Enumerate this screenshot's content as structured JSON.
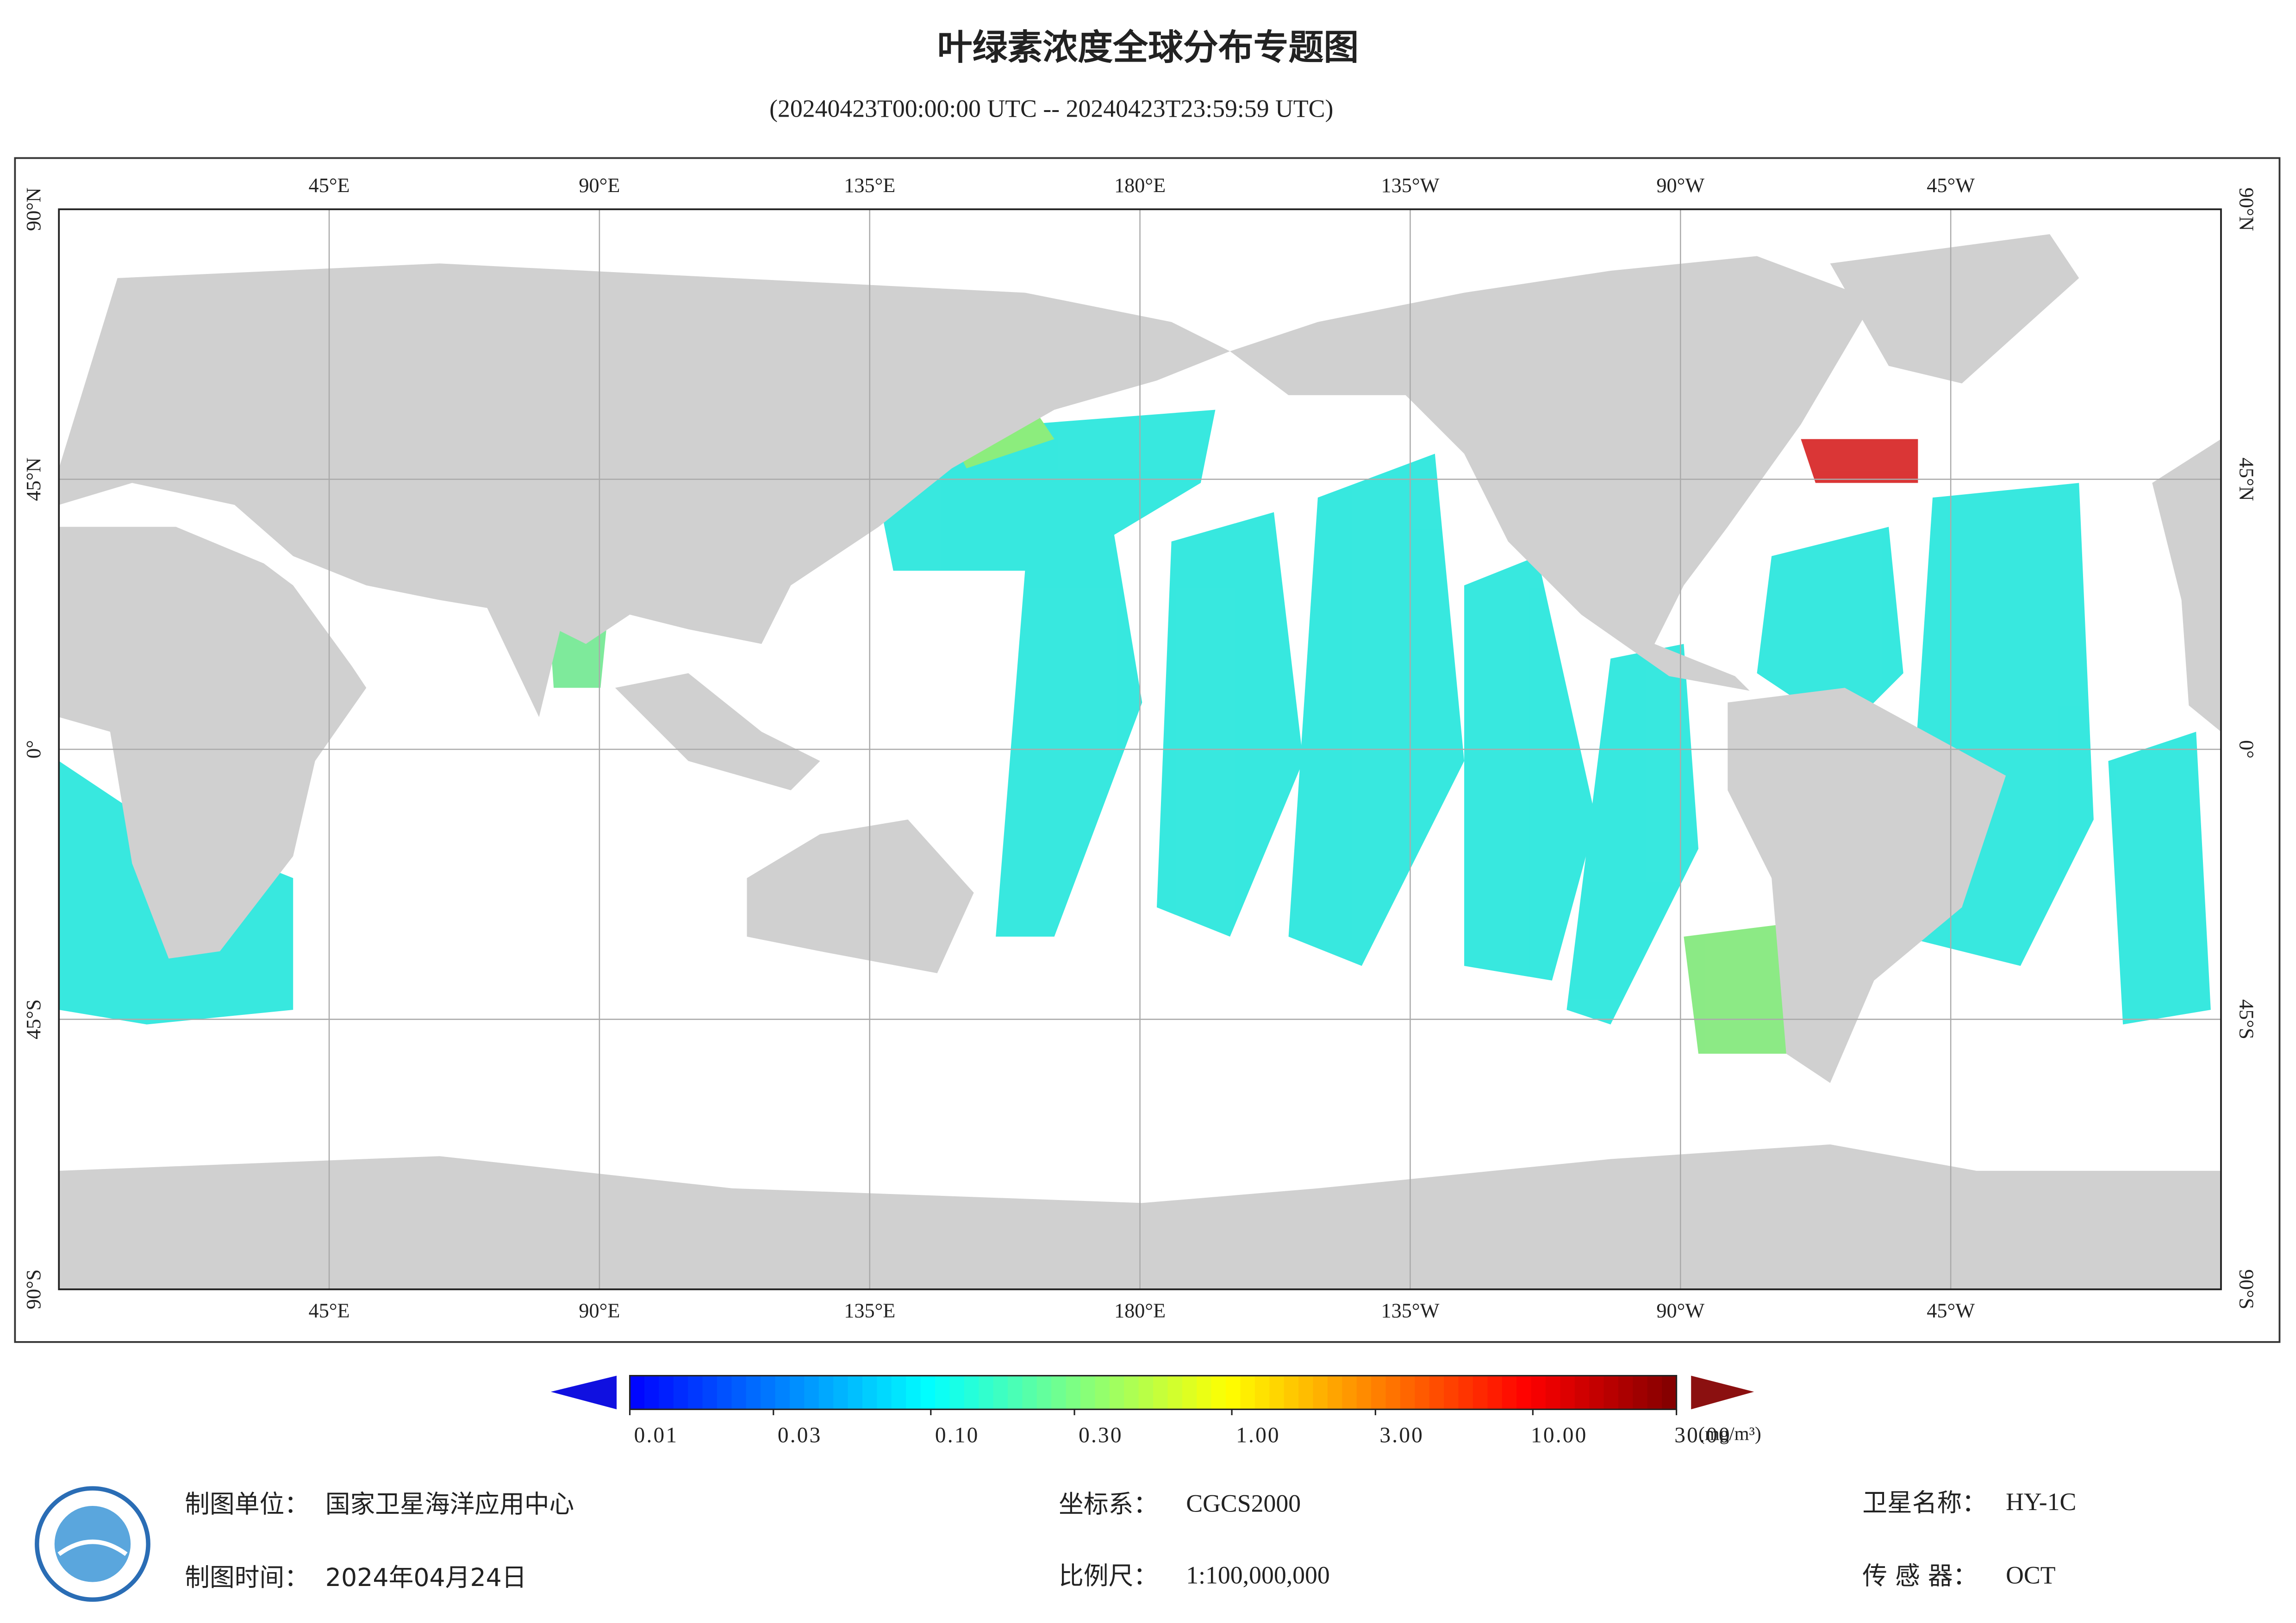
{
  "title": "叶绿素浓度全球分布专题图",
  "subtitle": "(20240423T00:00:00 UTC -- 20240423T23:59:59 UTC)",
  "map": {
    "xlim": [
      0,
      360
    ],
    "ylim": [
      -90,
      90
    ],
    "grid": true,
    "land_color": "#d0d0d0",
    "lon_ticks": [
      {
        "value": 45,
        "label": "45°E"
      },
      {
        "value": 90,
        "label": "90°E"
      },
      {
        "value": 135,
        "label": "135°E"
      },
      {
        "value": 180,
        "label": "180°E"
      },
      {
        "value": 225,
        "label": "135°W"
      },
      {
        "value": 270,
        "label": "90°W"
      },
      {
        "value": 315,
        "label": "45°W"
      }
    ],
    "lat_ticks": [
      {
        "value": 90,
        "label": "90°N"
      },
      {
        "value": 45,
        "label": "45°N"
      },
      {
        "value": 0,
        "label": "0°"
      },
      {
        "value": -45,
        "label": "45°S"
      },
      {
        "value": -90,
        "label": "90°S"
      }
    ]
  },
  "colorbar": {
    "scale": "log",
    "range": [
      0.01,
      30
    ],
    "unit": "(mg/m³)",
    "colors": [
      "#0000ff",
      "#0080ff",
      "#00ffff",
      "#80ff80",
      "#ffff00",
      "#ff8000",
      "#ff0000",
      "#800000"
    ],
    "under_color": "#1010e0",
    "over_color": "#8b1010",
    "ticks": [
      {
        "value": 0.01,
        "label": "0.01"
      },
      {
        "value": 0.03,
        "label": "0.03"
      },
      {
        "value": 0.1,
        "label": "0.10"
      },
      {
        "value": 0.3,
        "label": "0.30"
      },
      {
        "value": 1,
        "label": "1.00"
      },
      {
        "value": 3,
        "label": "3.00"
      },
      {
        "value": 10,
        "label": "10.00"
      },
      {
        "value": 30,
        "label": "30.00"
      }
    ]
  },
  "footer": {
    "unit_label": "制图单位：",
    "unit": "国家卫星海洋应用中心",
    "date_label": "制图时间：",
    "date": "2024年04月24日",
    "crs_label": "坐标系：",
    "crs": "CGCS2000",
    "scale_label": "比例尺：",
    "scale": "1:100,000,000",
    "satellite_label": "卫星名称：",
    "satellite": "HY-1C",
    "sensor_label": "传 感 器：",
    "sensor": "OCT"
  }
}
